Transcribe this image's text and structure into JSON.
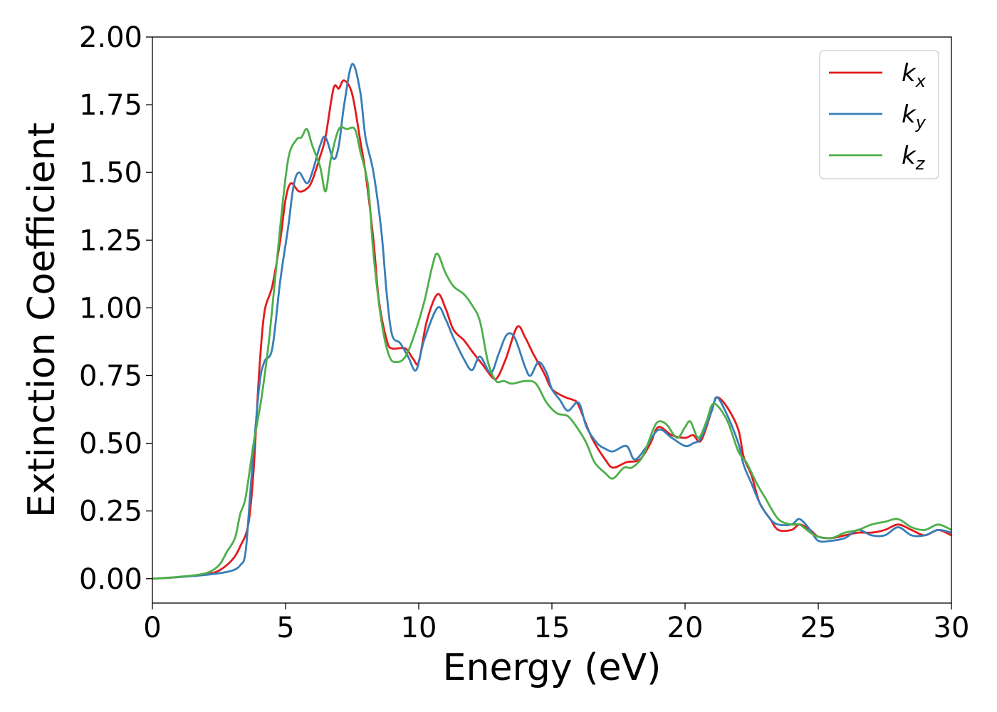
{
  "chart_data": {
    "type": "line",
    "xlabel": "Energy (eV)",
    "ylabel": "Extinction Coefficient",
    "xlim": [
      0,
      30
    ],
    "ylim": [
      -0.09,
      2.0
    ],
    "xticks": [
      0,
      5,
      10,
      15,
      20,
      25,
      30
    ],
    "yticks": [
      0.0,
      0.25,
      0.5,
      0.75,
      1.0,
      1.25,
      1.5,
      1.75,
      2.0
    ],
    "xtick_labels": [
      "0",
      "5",
      "10",
      "15",
      "20",
      "25",
      "30"
    ],
    "ytick_labels": [
      "0.00",
      "0.25",
      "0.50",
      "0.75",
      "1.00",
      "1.25",
      "1.50",
      "1.75",
      "2.00"
    ],
    "grid": false,
    "legend_position": "top-right",
    "series": [
      {
        "name": "k_x",
        "legend_base": "k",
        "legend_sub": "x",
        "color": "#e41a1c",
        "points": [
          [
            0,
            0
          ],
          [
            1,
            0.006
          ],
          [
            2,
            0.016
          ],
          [
            2.5,
            0.03
          ],
          [
            3,
            0.07
          ],
          [
            3.3,
            0.12
          ],
          [
            3.6,
            0.2
          ],
          [
            3.8,
            0.4
          ],
          [
            4,
            0.75
          ],
          [
            4.2,
            0.98
          ],
          [
            4.5,
            1.08
          ],
          [
            4.8,
            1.25
          ],
          [
            5,
            1.4
          ],
          [
            5.2,
            1.46
          ],
          [
            5.5,
            1.43
          ],
          [
            5.8,
            1.44
          ],
          [
            6,
            1.47
          ],
          [
            6.3,
            1.56
          ],
          [
            6.5,
            1.63
          ],
          [
            6.8,
            1.81
          ],
          [
            7,
            1.81
          ],
          [
            7.2,
            1.84
          ],
          [
            7.5,
            1.79
          ],
          [
            7.8,
            1.62
          ],
          [
            8,
            1.5
          ],
          [
            8.3,
            1.25
          ],
          [
            8.5,
            1.03
          ],
          [
            8.8,
            0.88
          ],
          [
            9,
            0.85
          ],
          [
            9.5,
            0.85
          ],
          [
            9.8,
            0.81
          ],
          [
            10,
            0.8
          ],
          [
            10.3,
            0.95
          ],
          [
            10.7,
            1.05
          ],
          [
            11,
            1.0
          ],
          [
            11.3,
            0.92
          ],
          [
            11.7,
            0.88
          ],
          [
            12,
            0.84
          ],
          [
            12.4,
            0.79
          ],
          [
            12.8,
            0.74
          ],
          [
            13,
            0.75
          ],
          [
            13.3,
            0.82
          ],
          [
            13.7,
            0.93
          ],
          [
            14,
            0.89
          ],
          [
            14.3,
            0.83
          ],
          [
            14.7,
            0.76
          ],
          [
            15,
            0.7
          ],
          [
            15.5,
            0.67
          ],
          [
            15.8,
            0.66
          ],
          [
            16,
            0.64
          ],
          [
            16.5,
            0.52
          ],
          [
            17,
            0.44
          ],
          [
            17.3,
            0.41
          ],
          [
            17.8,
            0.43
          ],
          [
            18.3,
            0.44
          ],
          [
            18.7,
            0.5
          ],
          [
            19,
            0.56
          ],
          [
            19.5,
            0.53
          ],
          [
            20,
            0.52
          ],
          [
            20.3,
            0.53
          ],
          [
            20.6,
            0.51
          ],
          [
            21,
            0.62
          ],
          [
            21.2,
            0.67
          ],
          [
            21.6,
            0.63
          ],
          [
            22,
            0.55
          ],
          [
            22.2,
            0.45
          ],
          [
            22.5,
            0.38
          ],
          [
            22.8,
            0.28
          ],
          [
            23.2,
            0.22
          ],
          [
            23.5,
            0.18
          ],
          [
            24,
            0.18
          ],
          [
            24.3,
            0.2
          ],
          [
            24.7,
            0.18
          ],
          [
            25,
            0.155
          ],
          [
            25.5,
            0.15
          ],
          [
            26,
            0.16
          ],
          [
            26.5,
            0.17
          ],
          [
            27,
            0.17
          ],
          [
            27.5,
            0.18
          ],
          [
            28,
            0.2
          ],
          [
            28.5,
            0.18
          ],
          [
            29,
            0.16
          ],
          [
            29.5,
            0.18
          ],
          [
            30,
            0.16
          ]
        ]
      },
      {
        "name": "k_y",
        "legend_base": "k",
        "legend_sub": "y",
        "color": "#377eb8",
        "points": [
          [
            0,
            0
          ],
          [
            1,
            0.006
          ],
          [
            2,
            0.014
          ],
          [
            2.5,
            0.02
          ],
          [
            3,
            0.03
          ],
          [
            3.3,
            0.05
          ],
          [
            3.5,
            0.1
          ],
          [
            3.7,
            0.35
          ],
          [
            4,
            0.7
          ],
          [
            4.2,
            0.8
          ],
          [
            4.5,
            0.85
          ],
          [
            4.8,
            1.1
          ],
          [
            5.1,
            1.3
          ],
          [
            5.3,
            1.45
          ],
          [
            5.5,
            1.5
          ],
          [
            5.8,
            1.46
          ],
          [
            6,
            1.5
          ],
          [
            6.3,
            1.6
          ],
          [
            6.5,
            1.63
          ],
          [
            6.8,
            1.55
          ],
          [
            7,
            1.6
          ],
          [
            7.2,
            1.75
          ],
          [
            7.5,
            1.9
          ],
          [
            7.8,
            1.8
          ],
          [
            8,
            1.63
          ],
          [
            8.3,
            1.5
          ],
          [
            8.6,
            1.28
          ],
          [
            8.8,
            1.05
          ],
          [
            9,
            0.9
          ],
          [
            9.3,
            0.87
          ],
          [
            9.6,
            0.82
          ],
          [
            9.9,
            0.77
          ],
          [
            10.2,
            0.88
          ],
          [
            10.7,
            1.0
          ],
          [
            11,
            0.96
          ],
          [
            11.3,
            0.89
          ],
          [
            11.7,
            0.81
          ],
          [
            12,
            0.77
          ],
          [
            12.3,
            0.82
          ],
          [
            12.7,
            0.76
          ],
          [
            13,
            0.83
          ],
          [
            13.3,
            0.9
          ],
          [
            13.6,
            0.89
          ],
          [
            14,
            0.78
          ],
          [
            14.2,
            0.75
          ],
          [
            14.5,
            0.8
          ],
          [
            14.8,
            0.76
          ],
          [
            15,
            0.7
          ],
          [
            15.3,
            0.66
          ],
          [
            15.6,
            0.62
          ],
          [
            16,
            0.65
          ],
          [
            16.3,
            0.56
          ],
          [
            16.7,
            0.5
          ],
          [
            17,
            0.48
          ],
          [
            17.3,
            0.47
          ],
          [
            17.8,
            0.49
          ],
          [
            18.1,
            0.44
          ],
          [
            18.5,
            0.48
          ],
          [
            19,
            0.55
          ],
          [
            19.5,
            0.52
          ],
          [
            20,
            0.49
          ],
          [
            20.3,
            0.5
          ],
          [
            20.6,
            0.52
          ],
          [
            21,
            0.62
          ],
          [
            21.2,
            0.67
          ],
          [
            21.6,
            0.6
          ],
          [
            22,
            0.5
          ],
          [
            22.2,
            0.42
          ],
          [
            22.5,
            0.35
          ],
          [
            22.8,
            0.28
          ],
          [
            23.2,
            0.22
          ],
          [
            23.5,
            0.2
          ],
          [
            24,
            0.2
          ],
          [
            24.3,
            0.22
          ],
          [
            24.7,
            0.18
          ],
          [
            25,
            0.14
          ],
          [
            25.5,
            0.14
          ],
          [
            26,
            0.15
          ],
          [
            26.5,
            0.18
          ],
          [
            27,
            0.16
          ],
          [
            27.5,
            0.16
          ],
          [
            28,
            0.19
          ],
          [
            28.5,
            0.16
          ],
          [
            29,
            0.16
          ],
          [
            29.5,
            0.18
          ],
          [
            30,
            0.17
          ]
        ]
      },
      {
        "name": "k_z",
        "legend_base": "k",
        "legend_sub": "z",
        "color": "#4daf4a",
        "points": [
          [
            0,
            0
          ],
          [
            1,
            0.007
          ],
          [
            2,
            0.02
          ],
          [
            2.5,
            0.05
          ],
          [
            2.8,
            0.1
          ],
          [
            3.1,
            0.15
          ],
          [
            3.3,
            0.24
          ],
          [
            3.5,
            0.3
          ],
          [
            3.8,
            0.5
          ],
          [
            4.1,
            0.67
          ],
          [
            4.4,
            0.9
          ],
          [
            4.8,
            1.3
          ],
          [
            5.1,
            1.55
          ],
          [
            5.4,
            1.62
          ],
          [
            5.6,
            1.63
          ],
          [
            5.8,
            1.66
          ],
          [
            6,
            1.6
          ],
          [
            6.3,
            1.52
          ],
          [
            6.5,
            1.43
          ],
          [
            6.7,
            1.55
          ],
          [
            7,
            1.66
          ],
          [
            7.3,
            1.66
          ],
          [
            7.6,
            1.66
          ],
          [
            7.8,
            1.58
          ],
          [
            8.1,
            1.45
          ],
          [
            8.3,
            1.2
          ],
          [
            8.6,
            0.95
          ],
          [
            8.9,
            0.82
          ],
          [
            9.2,
            0.8
          ],
          [
            9.5,
            0.82
          ],
          [
            9.8,
            0.89
          ],
          [
            10.2,
            1.02
          ],
          [
            10.5,
            1.15
          ],
          [
            10.7,
            1.2
          ],
          [
            11,
            1.13
          ],
          [
            11.3,
            1.08
          ],
          [
            11.7,
            1.05
          ],
          [
            12,
            1.01
          ],
          [
            12.3,
            0.95
          ],
          [
            12.6,
            0.8
          ],
          [
            12.9,
            0.73
          ],
          [
            13.2,
            0.73
          ],
          [
            13.5,
            0.72
          ],
          [
            14,
            0.73
          ],
          [
            14.4,
            0.72
          ],
          [
            14.8,
            0.65
          ],
          [
            15.2,
            0.61
          ],
          [
            15.6,
            0.6
          ],
          [
            16,
            0.55
          ],
          [
            16.3,
            0.5
          ],
          [
            16.6,
            0.43
          ],
          [
            17,
            0.39
          ],
          [
            17.3,
            0.37
          ],
          [
            17.7,
            0.41
          ],
          [
            18,
            0.41
          ],
          [
            18.4,
            0.45
          ],
          [
            18.8,
            0.55
          ],
          [
            19,
            0.58
          ],
          [
            19.3,
            0.57
          ],
          [
            19.7,
            0.52
          ],
          [
            20,
            0.56
          ],
          [
            20.2,
            0.58
          ],
          [
            20.5,
            0.52
          ],
          [
            20.8,
            0.58
          ],
          [
            21,
            0.64
          ],
          [
            21.2,
            0.64
          ],
          [
            21.6,
            0.58
          ],
          [
            22,
            0.47
          ],
          [
            22.3,
            0.43
          ],
          [
            22.7,
            0.35
          ],
          [
            23,
            0.3
          ],
          [
            23.5,
            0.22
          ],
          [
            24,
            0.2
          ],
          [
            24.3,
            0.2
          ],
          [
            24.7,
            0.17
          ],
          [
            25,
            0.155
          ],
          [
            25.5,
            0.15
          ],
          [
            26,
            0.17
          ],
          [
            26.5,
            0.18
          ],
          [
            27,
            0.2
          ],
          [
            27.5,
            0.21
          ],
          [
            28,
            0.22
          ],
          [
            28.5,
            0.19
          ],
          [
            29,
            0.18
          ],
          [
            29.5,
            0.2
          ],
          [
            30,
            0.18
          ]
        ]
      }
    ]
  }
}
